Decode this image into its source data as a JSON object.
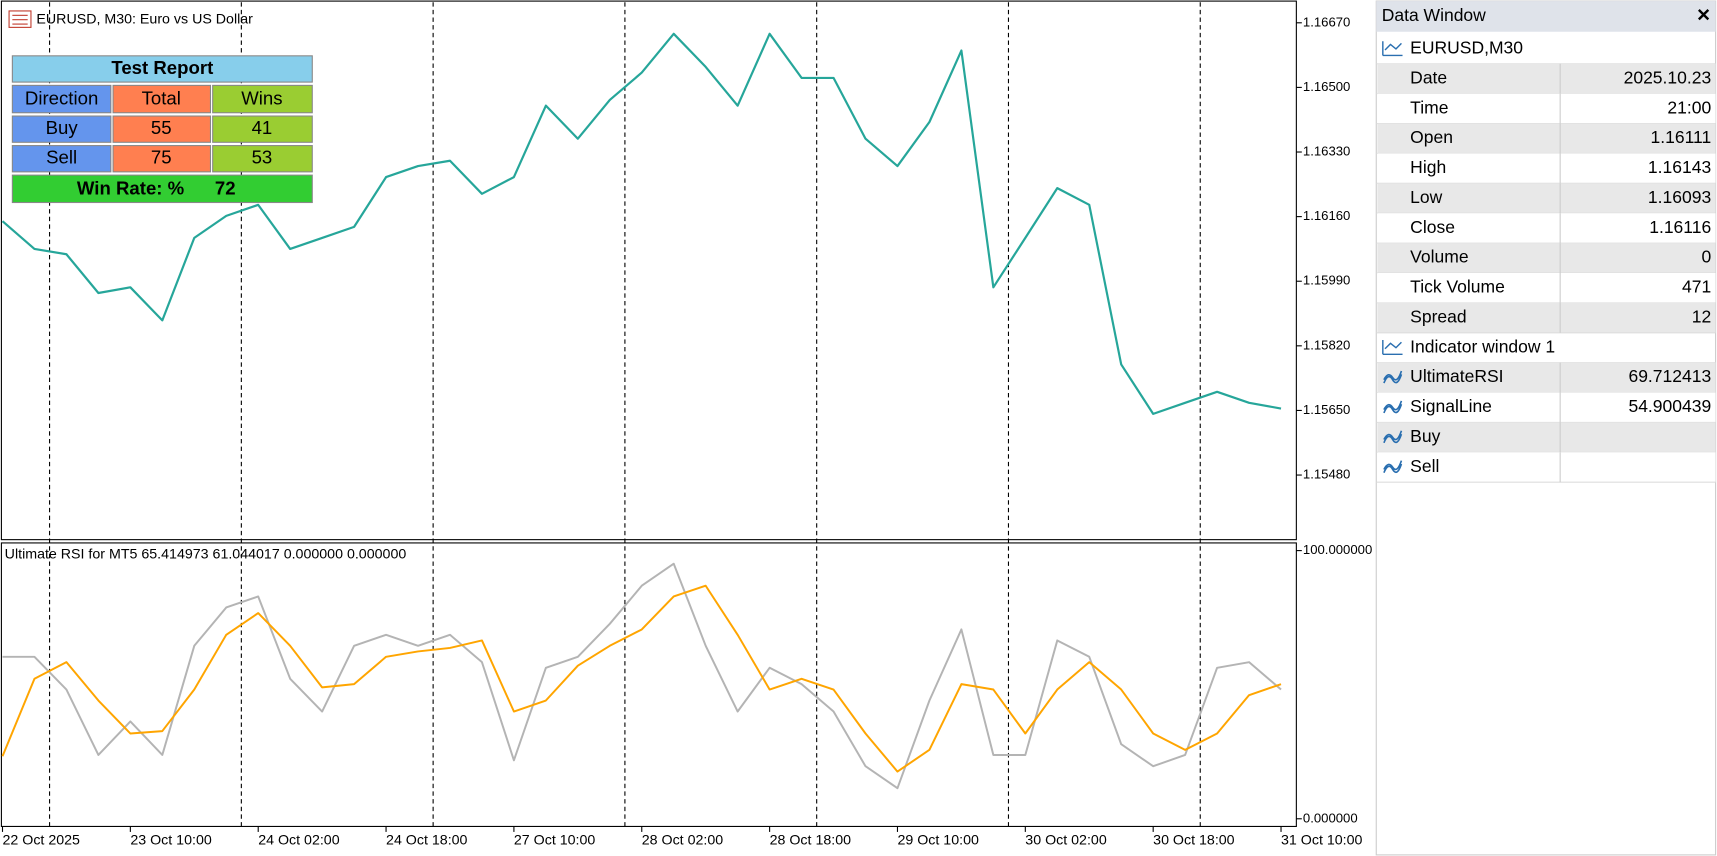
{
  "window_title": "EURUSD, M30:  Euro vs US Dollar",
  "chart_data": [
    {
      "type": "line",
      "ylim": [
        1.1531,
        1.1673
      ],
      "yticks": [
        {
          "value": 1.1667,
          "label": "1.16670"
        },
        {
          "value": 1.165,
          "label": "1.16500"
        },
        {
          "value": 1.1633,
          "label": "1.16330"
        },
        {
          "value": 1.1616,
          "label": "1.16160"
        },
        {
          "value": 1.1599,
          "label": "1.15990"
        },
        {
          "value": 1.1582,
          "label": "1.15820"
        },
        {
          "value": 1.1565,
          "label": "1.15650"
        },
        {
          "value": 1.1548,
          "label": "1.15480"
        }
      ],
      "series": [
        {
          "color": "#26a69a",
          "values": [
            1.16148,
            1.16075,
            1.16061,
            1.15959,
            1.15974,
            1.15887,
            1.16104,
            1.16162,
            1.16191,
            1.16075,
            1.16104,
            1.16133,
            1.16264,
            1.16293,
            1.16307,
            1.1622,
            1.16264,
            1.16452,
            1.16365,
            1.16467,
            1.16539,
            1.16641,
            1.16554,
            1.16452,
            1.16641,
            1.16525,
            1.16525,
            1.16365,
            1.16293,
            1.16409,
            1.16597,
            1.15974,
            1.16104,
            1.16235,
            1.16191,
            1.15771,
            1.15641,
            1.1567,
            1.15699,
            1.1567,
            1.15655
          ]
        }
      ]
    },
    {
      "type": "line",
      "title": "Ultimate RSI for MT5 65.414973 61.044017 0.000000 0.000000",
      "categories": [
        "22 Oct 2025",
        null,
        null,
        null,
        "23 Oct 10:00",
        null,
        null,
        null,
        "24 Oct 02:00",
        null,
        null,
        null,
        "24 Oct 18:00",
        null,
        null,
        null,
        "27 Oct 10:00",
        null,
        null,
        null,
        "28 Oct 02:00",
        null,
        null,
        null,
        "28 Oct 18:00",
        null,
        null,
        null,
        "29 Oct 10:00",
        null,
        null,
        null,
        "30 Oct 02:00",
        null,
        null,
        null,
        "30 Oct 18:00",
        null,
        null,
        null,
        "31 Oct 10:00"
      ],
      "ylim": [
        0,
        100
      ],
      "yticks": [
        {
          "value": 100,
          "label": "100.000000"
        },
        {
          "value": 0,
          "label": "0.000000"
        }
      ],
      "series": [
        {
          "color": "#b4b4b4",
          "values": [
            60.4,
            60.4,
            48.2,
            23.8,
            36.3,
            23.8,
            64.5,
            78.8,
            82.9,
            52.2,
            40,
            64.5,
            68.6,
            64.5,
            68.6,
            58.4,
            21.8,
            56.3,
            60.4,
            72.7,
            86.9,
            95.1,
            64.5,
            40,
            56.3,
            50.2,
            40,
            19.6,
            11.4,
            44.1,
            70.6,
            23.8,
            23.8,
            66.5,
            60.4,
            27.8,
            19.6,
            23.8,
            56.3,
            58.4,
            48.2
          ]
        },
        {
          "color": "#ffa500",
          "values": [
            23.3,
            52.2,
            58.4,
            44.1,
            31.8,
            32.7,
            48.2,
            68.6,
            76.7,
            64.5,
            49,
            50.2,
            60.4,
            62.4,
            63.7,
            66.5,
            40,
            44.1,
            57.1,
            64.5,
            70.6,
            82.9,
            86.9,
            68.6,
            48.2,
            52.2,
            48.2,
            31.8,
            17.6,
            25.7,
            50.2,
            48.2,
            31.8,
            48.2,
            58.4,
            48.2,
            31.8,
            25.7,
            31.8,
            46.1,
            50.2
          ]
        }
      ]
    }
  ],
  "test_report": {
    "title": "Test Report",
    "header": [
      "Direction",
      "Total",
      "Wins"
    ],
    "rows": [
      [
        "Buy",
        55,
        41
      ],
      [
        "Sell",
        75,
        53
      ]
    ],
    "win_rate_label": "Win Rate: %",
    "win_rate": 72
  },
  "data_window": {
    "title": "Data Window",
    "symbol": "EURUSD,M30",
    "rows": [
      {
        "label": "Date",
        "value": "2025.10.23"
      },
      {
        "label": "Time",
        "value": "21:00"
      },
      {
        "label": "Open",
        "value": 1.16111
      },
      {
        "label": "High",
        "value": 1.16143
      },
      {
        "label": "Low",
        "value": 1.16093
      },
      {
        "label": "Close",
        "value": 1.16116
      },
      {
        "label": "Volume",
        "value": 0
      },
      {
        "label": "Tick Volume",
        "value": 471
      },
      {
        "label": "Spread",
        "value": 12
      }
    ],
    "indicator_window": "Indicator window 1",
    "indicator_rows": [
      {
        "label": "UltimateRSI",
        "value": 69.712413
      },
      {
        "label": "SignalLine",
        "value": 54.900439
      },
      {
        "label": "Buy"
      },
      {
        "label": "Sell"
      }
    ]
  }
}
